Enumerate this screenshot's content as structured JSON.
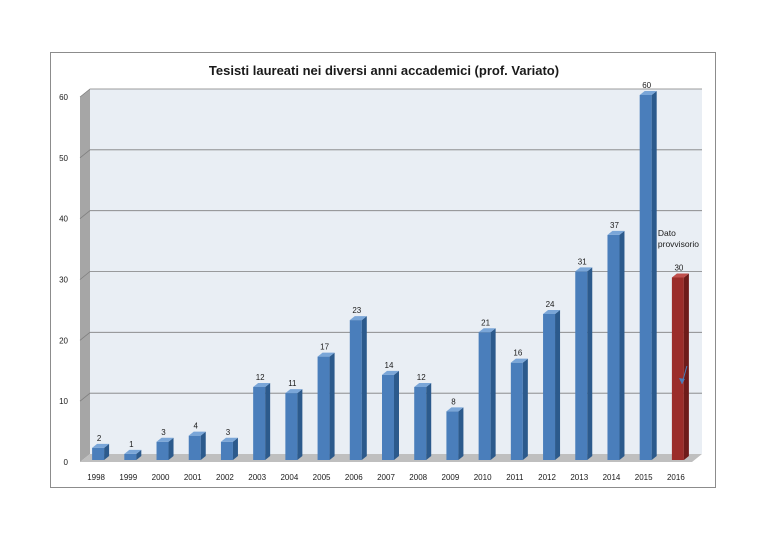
{
  "chart_data": {
    "type": "bar",
    "title": "Tesisti laureati nei diversi anni accademici (prof. Variato)",
    "xlabel": "",
    "ylabel": "",
    "categories": [
      "1998",
      "1999",
      "2000",
      "2001",
      "2002",
      "2003",
      "2004",
      "2005",
      "2006",
      "2007",
      "2008",
      "2009",
      "2010",
      "2011",
      "2012",
      "2013",
      "2014",
      "2015",
      "2016"
    ],
    "values": [
      2,
      1,
      3,
      4,
      3,
      12,
      11,
      17,
      23,
      14,
      12,
      8,
      21,
      16,
      24,
      31,
      37,
      60,
      30
    ],
    "ylim": [
      0,
      60
    ],
    "yticks": [
      0,
      10,
      20,
      30,
      40,
      50,
      60
    ],
    "grid": true,
    "legend": "none",
    "colors": {
      "bar": "#4a7ebb",
      "bar_side": "#2c5a8c",
      "bar_top": "#7aa6d8",
      "highlight_bar": "#9b2d2a",
      "highlight_side": "#6e1c1a",
      "highlight_top": "#c0504d",
      "plot_background": "#e9eef4",
      "gridline": "#7f7f7f"
    },
    "highlight_category": "2016",
    "annotation": {
      "text_lines": [
        "Dato",
        "provvisorio"
      ],
      "category": "2016",
      "arrow": true
    }
  }
}
